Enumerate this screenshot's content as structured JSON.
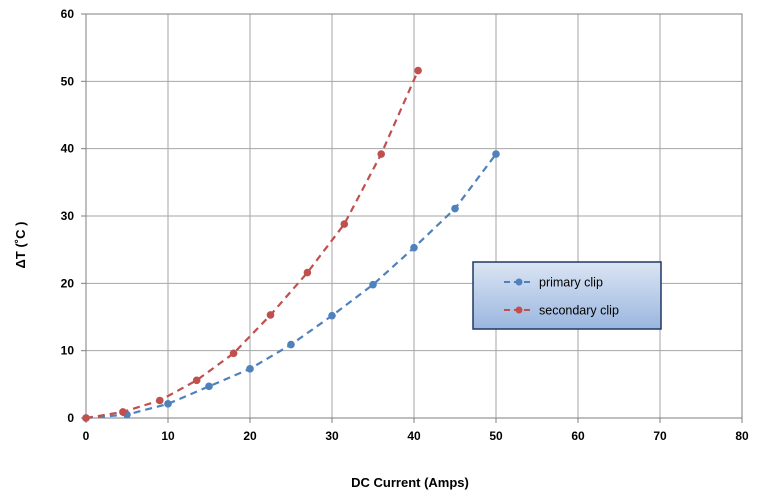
{
  "chart_data": {
    "type": "line",
    "xlabel": "DC Current (Amps)",
    "ylabel": "ΔT (˚C )",
    "xlim": [
      0,
      80
    ],
    "ylim": [
      0,
      60
    ],
    "x_ticks": [
      "0",
      "10",
      "20",
      "30",
      "40",
      "50",
      "60",
      "70",
      "80"
    ],
    "y_ticks": [
      "0",
      "10",
      "20",
      "30",
      "40",
      "50",
      "60"
    ],
    "grid": true,
    "legend_position": "center-right",
    "series": [
      {
        "name": "primary clip",
        "color": "#4f81bd",
        "x": [
          0,
          5,
          10,
          15,
          20,
          25,
          30,
          35,
          40,
          45,
          50
        ],
        "y": [
          0,
          0.5,
          2.1,
          4.7,
          7.3,
          10.9,
          15.2,
          19.8,
          25.3,
          31.1,
          39.2
        ]
      },
      {
        "name": "secondary clip",
        "color": "#c0504d",
        "x": [
          0,
          4.5,
          9,
          13.5,
          18,
          22.5,
          27,
          31.5,
          36,
          40.5
        ],
        "y": [
          0,
          0.9,
          2.6,
          5.6,
          9.6,
          15.3,
          21.6,
          28.8,
          39.2,
          51.6
        ]
      }
    ]
  }
}
